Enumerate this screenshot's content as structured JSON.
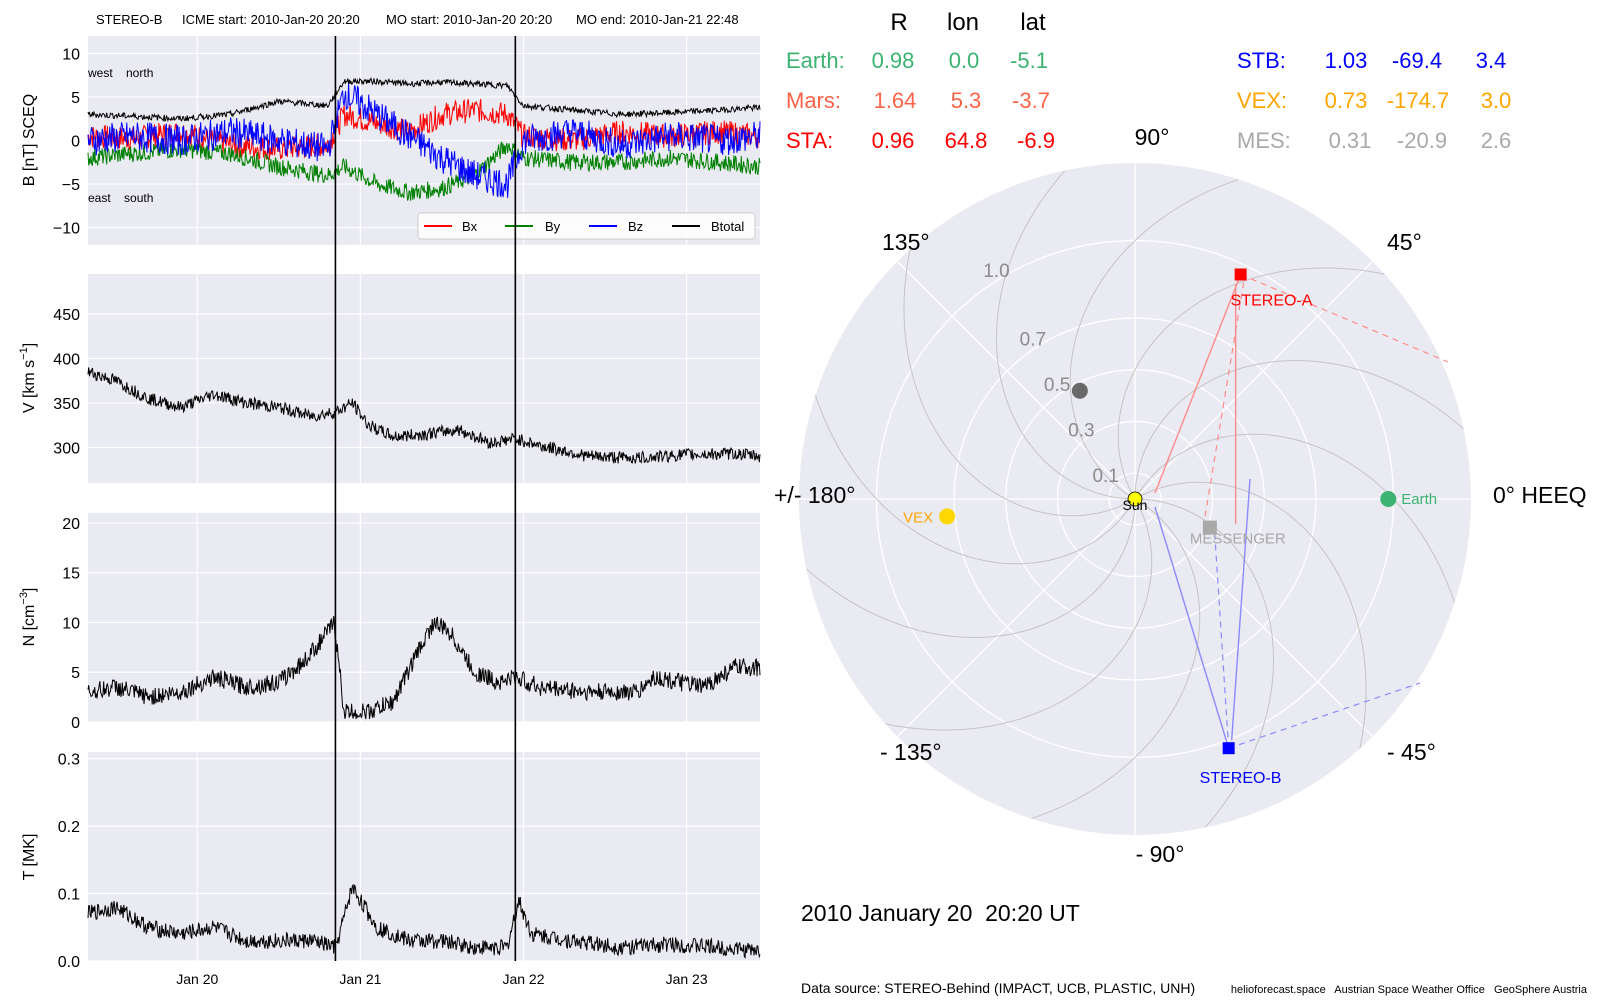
{
  "header": {
    "spacecraft": "STEREO-B",
    "icme_start": "ICME start: 2010-Jan-20 20:20",
    "mo_start": "MO start: 2010-Jan-20 20:20",
    "mo_end": "MO end: 2010-Jan-21 22:48"
  },
  "panels": {
    "b": {
      "ylabel": "B [nT] SCEQ",
      "ylim": [
        -12,
        12
      ],
      "ticks": [
        "10",
        "5",
        "0",
        "−5",
        "−10"
      ],
      "tick_values": [
        10,
        5,
        0,
        -5,
        -10
      ],
      "note_top": "west    north",
      "note_bottom": "east    south",
      "legend": [
        "Bx",
        "By",
        "Bz",
        "Btotal"
      ]
    },
    "v": {
      "ylabel_main": "V [km s",
      "ylabel_sup": "−1",
      "ylabel_end": "]",
      "ylim": [
        260,
        495
      ],
      "ticks": [
        "450",
        "400",
        "350",
        "300"
      ],
      "tick_values": [
        450,
        400,
        350,
        300
      ]
    },
    "n": {
      "ylabel_main": "N [cm",
      "ylabel_sup": "−3",
      "ylabel_end": "]",
      "ylim": [
        0,
        21
      ],
      "ticks": [
        "20",
        "15",
        "10",
        "5",
        "0"
      ],
      "tick_values": [
        20,
        15,
        10,
        5,
        0
      ]
    },
    "t": {
      "ylabel": "T [MK]",
      "ylim": [
        0,
        0.31
      ],
      "ticks": [
        "0.3",
        "0.2",
        "0.1",
        "0.0"
      ],
      "tick_values": [
        0.3,
        0.2,
        0.1,
        0.0
      ]
    }
  },
  "xaxis": {
    "labels": [
      "Jan 20",
      "Jan 21",
      "Jan 22",
      "Jan 23"
    ],
    "day_values": [
      20,
      21,
      22,
      23
    ],
    "xlim": [
      19.33,
      23.45
    ]
  },
  "event_lines_days": [
    20.847,
    21.95
  ],
  "chart_data": {
    "type": "line",
    "x_unit": "day of January 2010",
    "series": [
      {
        "name": "Bx",
        "color": "#ff0000",
        "x": [
          19.33,
          19.6,
          19.9,
          20.2,
          20.5,
          20.8,
          20.9,
          21.1,
          21.3,
          21.5,
          21.7,
          21.9,
          22.0,
          22.3,
          22.6,
          22.9,
          23.2,
          23.45
        ],
        "values": [
          0.5,
          0.2,
          1.0,
          -0.5,
          -1.0,
          -0.5,
          3.0,
          2.0,
          1.0,
          3.0,
          3.5,
          3.0,
          0.5,
          0.0,
          1.0,
          0.5,
          1.0,
          0.5
        ]
      },
      {
        "name": "By",
        "color": "#008000",
        "x": [
          19.33,
          19.6,
          19.9,
          20.2,
          20.5,
          20.8,
          20.9,
          21.1,
          21.3,
          21.5,
          21.7,
          21.9,
          22.0,
          22.3,
          22.6,
          22.9,
          23.2,
          23.45
        ],
        "values": [
          -2.0,
          -1.5,
          -1.0,
          -1.5,
          -3.0,
          -4.0,
          -3.0,
          -5.0,
          -6.0,
          -5.5,
          -4.0,
          -0.5,
          -2.0,
          -2.5,
          -2.5,
          -2.0,
          -2.5,
          -3.0
        ]
      },
      {
        "name": "Bz",
        "color": "#0000ff",
        "x": [
          19.33,
          19.6,
          19.9,
          20.2,
          20.5,
          20.8,
          20.9,
          21.1,
          21.3,
          21.5,
          21.7,
          21.9,
          22.0,
          22.3,
          22.6,
          22.9,
          23.2,
          23.45
        ],
        "values": [
          0.0,
          0.5,
          0.0,
          1.0,
          0.0,
          -1.0,
          5.5,
          3.0,
          0.5,
          -2.0,
          -4.0,
          -5.0,
          0.0,
          1.0,
          -0.5,
          0.5,
          0.0,
          0.5
        ]
      },
      {
        "name": "Btotal",
        "color": "#000000",
        "x": [
          19.33,
          19.6,
          19.9,
          20.2,
          20.5,
          20.8,
          20.9,
          21.1,
          21.3,
          21.5,
          21.7,
          21.9,
          22.0,
          22.3,
          22.6,
          22.9,
          23.2,
          23.45
        ],
        "values": [
          3.0,
          2.8,
          2.5,
          3.0,
          4.5,
          4.0,
          6.8,
          6.8,
          6.5,
          6.7,
          6.5,
          6.3,
          4.0,
          3.5,
          3.0,
          3.2,
          3.5,
          3.8
        ]
      },
      {
        "name": "V",
        "color": "#000000",
        "x": [
          19.33,
          19.5,
          19.7,
          19.9,
          20.1,
          20.3,
          20.5,
          20.7,
          20.85,
          20.95,
          21.05,
          21.2,
          21.4,
          21.6,
          21.8,
          21.95,
          22.1,
          22.4,
          22.7,
          23.0,
          23.3,
          23.45
        ],
        "values": [
          385,
          375,
          355,
          345,
          360,
          350,
          345,
          335,
          340,
          350,
          325,
          312,
          315,
          320,
          305,
          310,
          302,
          290,
          288,
          292,
          293,
          290
        ]
      },
      {
        "name": "N",
        "color": "#000000",
        "x": [
          19.33,
          19.5,
          19.7,
          19.9,
          20.1,
          20.3,
          20.5,
          20.65,
          20.75,
          20.84,
          20.9,
          21.05,
          21.2,
          21.35,
          21.45,
          21.55,
          21.7,
          21.85,
          21.95,
          22.1,
          22.4,
          22.7,
          22.8,
          23.1,
          23.3,
          23.45
        ],
        "values": [
          3.0,
          3.5,
          2.5,
          3.0,
          4.5,
          3.5,
          4.0,
          6.0,
          8.0,
          10.0,
          1.0,
          1.0,
          2.0,
          7.0,
          10.0,
          9.0,
          5.0,
          4.0,
          4.5,
          3.5,
          3.0,
          3.0,
          4.5,
          3.5,
          5.5,
          5.5
        ]
      },
      {
        "name": "T",
        "color": "#000000",
        "x": [
          19.33,
          19.5,
          19.7,
          19.9,
          20.1,
          20.3,
          20.5,
          20.7,
          20.85,
          20.95,
          21.1,
          21.3,
          21.5,
          21.7,
          21.9,
          21.97,
          22.05,
          22.3,
          22.6,
          22.9,
          23.2,
          23.45
        ],
        "values": [
          0.07,
          0.08,
          0.05,
          0.04,
          0.05,
          0.03,
          0.03,
          0.03,
          0.02,
          0.11,
          0.05,
          0.03,
          0.03,
          0.02,
          0.02,
          0.09,
          0.04,
          0.03,
          0.02,
          0.025,
          0.02,
          0.015
        ]
      }
    ]
  },
  "polar": {
    "col_headers": [
      "R",
      "lon",
      "lat"
    ],
    "rows_left": [
      {
        "name": "Earth:",
        "r": "0.98",
        "lon": "0.0",
        "lat": "-5.1",
        "color": "#3cb371"
      },
      {
        "name": "Mars:",
        "r": "1.64",
        "lon": "5.3",
        "lat": "-3.7",
        "color": "#ff6347"
      },
      {
        "name": "STA:",
        "r": "0.96",
        "lon": "64.8",
        "lat": "-6.9",
        "color": "#ff0000"
      }
    ],
    "rows_right": [
      {
        "name": "STB:",
        "r": "1.03",
        "lon": "-69.4",
        "lat": "3.4",
        "color": "#0000ff"
      },
      {
        "name": "VEX:",
        "r": "0.73",
        "lon": "-174.7",
        "lat": "3.0",
        "color": "#ffa500"
      },
      {
        "name": "MES:",
        "r": "0.31",
        "lon": "-20.9",
        "lat": "2.6",
        "color": "#a9a9a9"
      }
    ],
    "angle_labels": {
      "a0": "0° HEEQ",
      "a45": "45°",
      "a90": "90°",
      "a135": "135°",
      "a180": "+/- 180°",
      "am135": "- 135°",
      "am90": "- 90°",
      "am45": "- 45°"
    },
    "radial_ticks": [
      "0.1",
      "0.3",
      "0.5",
      "0.7",
      "1.0"
    ],
    "radial_tick_values": [
      0.1,
      0.3,
      0.5,
      0.7,
      1.0
    ],
    "bodies": {
      "sun": {
        "label": "Sun",
        "r": 0.0,
        "lon": 0.0
      },
      "earth": {
        "label": "Earth",
        "r": 0.98,
        "lon": 0.0
      },
      "stereo_a": {
        "label": "STEREO-A",
        "r": 0.96,
        "lon": 64.8
      },
      "stereo_b": {
        "label": "STEREO-B",
        "r": 1.03,
        "lon": -69.4
      },
      "vex": {
        "label": "VEX",
        "r": 0.73,
        "lon": -174.7
      },
      "messenger": {
        "label": "MESSENGER",
        "r": 0.31,
        "lon": -20.9
      },
      "mars": {
        "r": 1.64,
        "lon": 5.3
      },
      "grey_dot": {
        "r": 0.47,
        "lon": 117
      }
    },
    "timestamp": "2010 January 20  20:20 UT"
  },
  "footer": {
    "source": "Data source: STEREO-Behind (IMPACT, UCB, PLASTIC, UNH)",
    "credits": "helioforecast.space   Austrian Space Weather Office   GeoSphere Austria"
  }
}
